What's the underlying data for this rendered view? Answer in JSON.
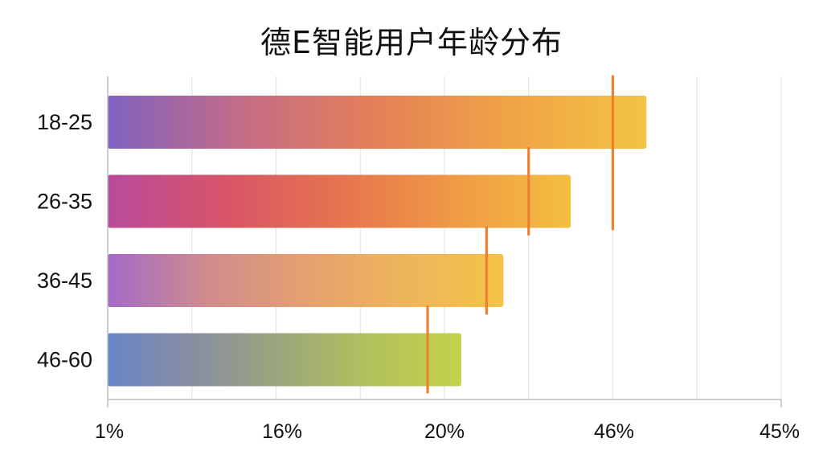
{
  "chart_data": {
    "type": "bar",
    "orientation": "horizontal",
    "title": "德E智能用户年龄分布",
    "categories": [
      "18-25",
      "26-35",
      "36-45",
      "46-60"
    ],
    "values": [
      42,
      37.5,
      33.5,
      31
    ],
    "markers": [
      40,
      35,
      32.5,
      29
    ],
    "x_ticks": [
      "1%",
      "16%",
      "20%",
      "46%",
      "45%"
    ],
    "xlim": [
      10,
      50
    ],
    "grid": true,
    "legend": "none",
    "colors": {
      "bar_gradients": [
        [
          "#7f62c0",
          "#c46c86",
          "#e58058",
          "#f0a445",
          "#f3c345"
        ],
        [
          "#b94a9c",
          "#d85468",
          "#e6744e",
          "#f09a45",
          "#f3bf40"
        ],
        [
          "#a36ac8",
          "#cf8c8d",
          "#e5a071",
          "#eeb55c",
          "#f3c346"
        ],
        [
          "#6686c8",
          "#8a8fa0",
          "#9ca87a",
          "#b3c25a",
          "#c3d24c"
        ]
      ],
      "marker": "#ee8030",
      "grid": "#e4e4e4",
      "axis": "#bdbdbd"
    }
  }
}
